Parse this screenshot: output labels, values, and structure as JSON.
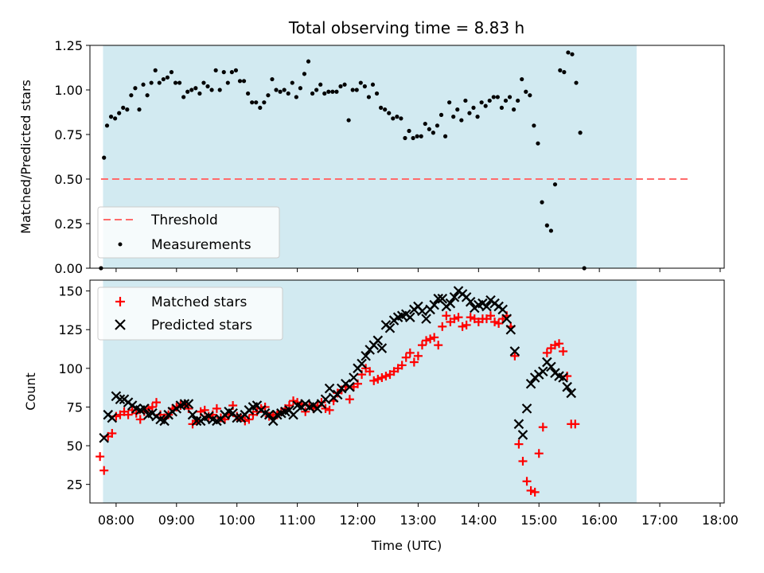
{
  "figure_title": "Total observing time = 8.83 h",
  "colors": {
    "shade": "#add8e6",
    "threshold": "#ff6b6b",
    "matched": "#ff0000",
    "predicted": "#000000",
    "measurement": "#000000"
  },
  "chart_data": [
    {
      "type": "scatter",
      "title": "Total observing time = 8.83 h",
      "xlabel": "",
      "ylabel": "Matched/Predicted stars",
      "xlim": [
        "07:34",
        "18:04"
      ],
      "ylim": [
        0,
        1.25
      ],
      "yticks": [
        "0.00",
        "0.25",
        "0.50",
        "0.75",
        "1.00",
        "1.25"
      ],
      "shaded_span": [
        "07:47",
        "16:37"
      ],
      "legend_position": "lower-left",
      "threshold": {
        "name": "Threshold",
        "y": 0.5,
        "x_range": [
          "07:45",
          "17:30"
        ],
        "style": "dashed"
      },
      "series": [
        {
          "name": "Measurements",
          "points": [
            [
              "07:45",
              0.0
            ],
            [
              "07:48",
              0.62
            ],
            [
              "07:51",
              0.8
            ],
            [
              "07:55",
              0.85
            ],
            [
              "07:59",
              0.84
            ],
            [
              "08:03",
              0.87
            ],
            [
              "08:07",
              0.9
            ],
            [
              "08:11",
              0.89
            ],
            [
              "08:15",
              0.97
            ],
            [
              "08:19",
              1.01
            ],
            [
              "08:23",
              0.89
            ],
            [
              "08:27",
              1.03
            ],
            [
              "08:31",
              0.97
            ],
            [
              "08:35",
              1.04
            ],
            [
              "08:39",
              1.11
            ],
            [
              "08:43",
              1.04
            ],
            [
              "08:47",
              1.06
            ],
            [
              "08:51",
              1.07
            ],
            [
              "08:55",
              1.1
            ],
            [
              "08:59",
              1.04
            ],
            [
              "09:03",
              1.04
            ],
            [
              "09:07",
              0.96
            ],
            [
              "09:11",
              0.99
            ],
            [
              "09:15",
              1.0
            ],
            [
              "09:19",
              1.01
            ],
            [
              "09:23",
              0.98
            ],
            [
              "09:27",
              1.04
            ],
            [
              "09:31",
              1.02
            ],
            [
              "09:35",
              1.0
            ],
            [
              "09:39",
              1.11
            ],
            [
              "09:43",
              1.0
            ],
            [
              "09:47",
              1.1
            ],
            [
              "09:51",
              1.04
            ],
            [
              "09:55",
              1.1
            ],
            [
              "09:59",
              1.11
            ],
            [
              "10:03",
              1.05
            ],
            [
              "10:07",
              1.05
            ],
            [
              "10:11",
              0.98
            ],
            [
              "10:15",
              0.93
            ],
            [
              "10:19",
              0.93
            ],
            [
              "10:23",
              0.9
            ],
            [
              "10:27",
              0.93
            ],
            [
              "10:31",
              0.97
            ],
            [
              "10:35",
              1.06
            ],
            [
              "10:39",
              1.0
            ],
            [
              "10:43",
              0.99
            ],
            [
              "10:47",
              1.0
            ],
            [
              "10:51",
              0.98
            ],
            [
              "10:55",
              1.04
            ],
            [
              "10:59",
              0.96
            ],
            [
              "11:03",
              1.01
            ],
            [
              "11:07",
              1.09
            ],
            [
              "11:11",
              1.16
            ],
            [
              "11:15",
              0.98
            ],
            [
              "11:19",
              1.0
            ],
            [
              "11:23",
              1.03
            ],
            [
              "11:27",
              0.98
            ],
            [
              "11:31",
              0.99
            ],
            [
              "11:35",
              0.99
            ],
            [
              "11:39",
              0.99
            ],
            [
              "11:43",
              1.02
            ],
            [
              "11:47",
              1.03
            ],
            [
              "11:51",
              0.83
            ],
            [
              "11:55",
              1.0
            ],
            [
              "11:59",
              1.0
            ],
            [
              "12:03",
              1.04
            ],
            [
              "12:07",
              1.02
            ],
            [
              "12:11",
              0.96
            ],
            [
              "12:15",
              1.03
            ],
            [
              "12:19",
              0.98
            ],
            [
              "12:23",
              0.9
            ],
            [
              "12:27",
              0.89
            ],
            [
              "12:31",
              0.87
            ],
            [
              "12:35",
              0.84
            ],
            [
              "12:39",
              0.85
            ],
            [
              "12:43",
              0.84
            ],
            [
              "12:47",
              0.73
            ],
            [
              "12:51",
              0.77
            ],
            [
              "12:55",
              0.73
            ],
            [
              "12:59",
              0.74
            ],
            [
              "13:03",
              0.74
            ],
            [
              "13:07",
              0.81
            ],
            [
              "13:11",
              0.78
            ],
            [
              "13:15",
              0.76
            ],
            [
              "13:19",
              0.8
            ],
            [
              "13:23",
              0.86
            ],
            [
              "13:27",
              0.74
            ],
            [
              "13:31",
              0.93
            ],
            [
              "13:35",
              0.85
            ],
            [
              "13:39",
              0.89
            ],
            [
              "13:43",
              0.83
            ],
            [
              "13:47",
              0.94
            ],
            [
              "13:51",
              0.87
            ],
            [
              "13:55",
              0.9
            ],
            [
              "13:59",
              0.85
            ],
            [
              "14:03",
              0.93
            ],
            [
              "14:07",
              0.91
            ],
            [
              "14:11",
              0.94
            ],
            [
              "14:15",
              0.96
            ],
            [
              "14:19",
              0.96
            ],
            [
              "14:23",
              0.9
            ],
            [
              "14:27",
              0.94
            ],
            [
              "14:31",
              0.96
            ],
            [
              "14:35",
              0.89
            ],
            [
              "14:39",
              0.94
            ],
            [
              "14:43",
              1.06
            ],
            [
              "14:47",
              0.99
            ],
            [
              "14:51",
              0.97
            ],
            [
              "14:55",
              0.8
            ],
            [
              "14:59",
              0.7
            ],
            [
              "15:03",
              0.37
            ],
            [
              "15:08",
              0.24
            ],
            [
              "15:12",
              0.21
            ],
            [
              "15:16",
              0.47
            ],
            [
              "15:21",
              1.11
            ],
            [
              "15:25",
              1.1
            ],
            [
              "15:29",
              1.21
            ],
            [
              "15:33",
              1.2
            ],
            [
              "15:37",
              1.04
            ],
            [
              "15:41",
              0.76
            ],
            [
              "15:45",
              0.0
            ]
          ]
        }
      ]
    },
    {
      "type": "scatter",
      "xlabel": "Time (UTC)",
      "ylabel": "Count",
      "xlim": [
        "07:34",
        "18:04"
      ],
      "ylim": [
        13,
        157
      ],
      "xticks": [
        "08:00",
        "09:00",
        "10:00",
        "11:00",
        "12:00",
        "13:00",
        "14:00",
        "15:00",
        "16:00",
        "17:00",
        "18:00"
      ],
      "yticks": [
        "25",
        "50",
        "75",
        "100",
        "125",
        "150"
      ],
      "shaded_span": [
        "07:47",
        "16:37"
      ],
      "legend_position": "upper-left",
      "series": [
        {
          "name": "Matched stars",
          "marker": "plus",
          "x": [],
          "y": []
        },
        {
          "name": "Predicted stars",
          "marker": "x",
          "x": [],
          "y": []
        }
      ]
    }
  ]
}
